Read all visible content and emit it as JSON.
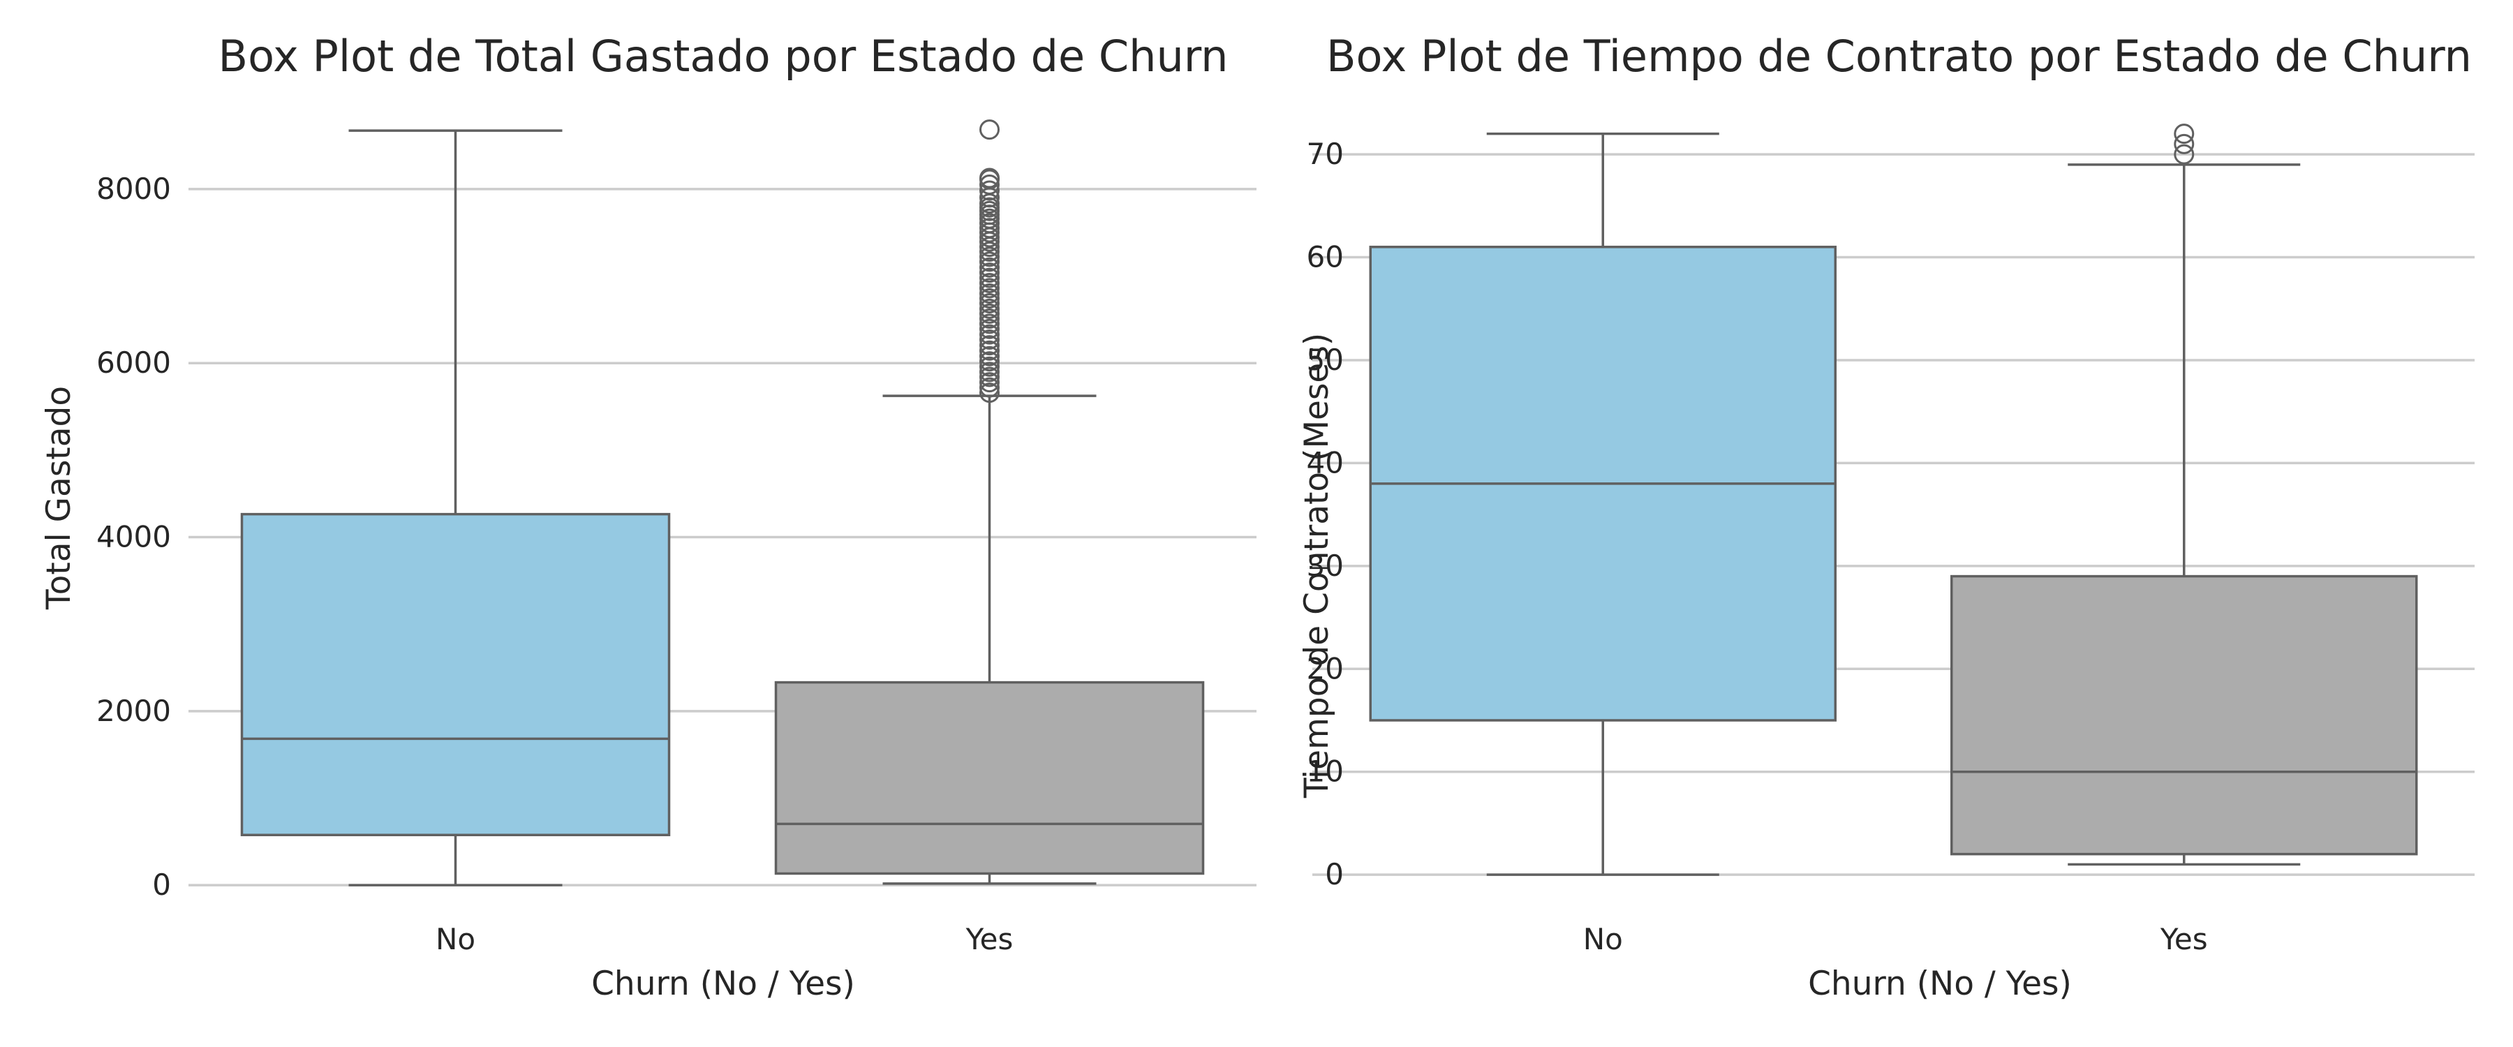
{
  "chart_data": [
    {
      "type": "box",
      "title": "Box Plot de Total Gastado por Estado de Churn",
      "xlabel": "Churn (No / Yes)",
      "ylabel": "Total Gastado",
      "ylim": [
        -175,
        9050
      ],
      "yticks": [
        0,
        2000,
        4000,
        6000,
        8000
      ],
      "grid": true,
      "categories": [
        "No",
        "Yes"
      ],
      "colors": [
        "#95c9e2",
        "#acacac"
      ],
      "boxes": [
        {
          "category": "No",
          "whisker_low": 0,
          "q1": 577,
          "median": 1683,
          "q3": 4264,
          "whisker_high": 8672,
          "outliers": []
        },
        {
          "category": "Yes",
          "whisker_low": 19,
          "q1": 134,
          "median": 704,
          "q3": 2331,
          "whisker_high": 5624,
          "outliers": [
            8684,
            8127,
            8110,
            8051,
            7983,
            7904,
            7835,
            7790,
            7748,
            7705,
            7660,
            7608,
            7552,
            7502,
            7446,
            7396,
            7336,
            7281,
            7222,
            7166,
            7099,
            7040,
            6979,
            6920,
            6861,
            6800,
            6744,
            6688,
            6624,
            6568,
            6511,
            6452,
            6393,
            6330,
            6270,
            6205,
            6144,
            6080,
            6020,
            5960,
            5898,
            5841,
            5780,
            5720,
            5660
          ]
        }
      ]
    },
    {
      "type": "box",
      "title": "Box Plot de Tiempo de Contrato por Estado de Churn",
      "xlabel": "Churn (No / Yes)",
      "ylabel": "Tiempo de Contrato (Meses)",
      "ylim": [
        -2.5,
        75.5
      ],
      "yticks": [
        0,
        10,
        20,
        30,
        40,
        50,
        60,
        70
      ],
      "grid": true,
      "categories": [
        "No",
        "Yes"
      ],
      "colors": [
        "#95c9e2",
        "#acacac"
      ],
      "boxes": [
        {
          "category": "No",
          "whisker_low": 0,
          "q1": 15,
          "median": 38,
          "q3": 61,
          "whisker_high": 72,
          "outliers": []
        },
        {
          "category": "Yes",
          "whisker_low": 1,
          "q1": 2,
          "median": 10,
          "q3": 29,
          "whisker_high": 69,
          "outliers": [
            70,
            71,
            72
          ]
        }
      ]
    }
  ]
}
